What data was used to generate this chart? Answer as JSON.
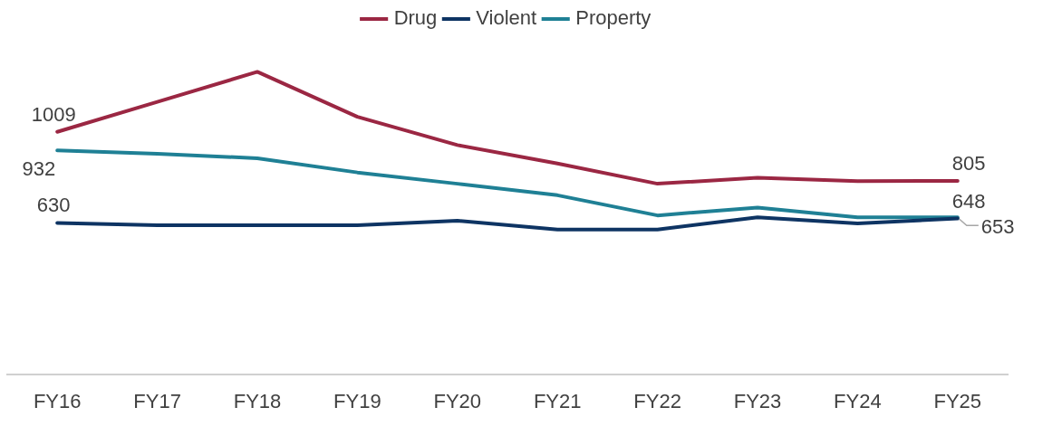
{
  "chart_data": {
    "type": "line",
    "categories": [
      "FY16",
      "FY17",
      "FY18",
      "FY19",
      "FY20",
      "FY21",
      "FY22",
      "FY23",
      "FY24",
      "FY25"
    ],
    "series": [
      {
        "name": "Drug",
        "color": "#9b2743",
        "values": [
          1009,
          1134,
          1259,
          1072,
          954,
          877,
          793,
          818,
          804,
          805
        ],
        "value_labels": [
          "1009",
          null,
          null,
          null,
          null,
          null,
          null,
          null,
          null,
          "805"
        ]
      },
      {
        "name": "Violent",
        "color": "#0e3463",
        "values": [
          630,
          620,
          620,
          620,
          639,
          602,
          602,
          653,
          628,
          648
        ],
        "value_labels": [
          "630",
          null,
          null,
          null,
          null,
          null,
          null,
          null,
          null,
          "648"
        ]
      },
      {
        "name": "Property",
        "color": "#1f8095",
        "values": [
          932,
          918,
          899,
          840,
          793,
          745,
          661,
          694,
          653,
          653
        ],
        "value_labels": [
          "932",
          null,
          null,
          null,
          null,
          null,
          null,
          null,
          null,
          "653"
        ]
      }
    ],
    "legend": "top",
    "marker": "none",
    "line_style": "solid",
    "tick_labels": "x"
  }
}
